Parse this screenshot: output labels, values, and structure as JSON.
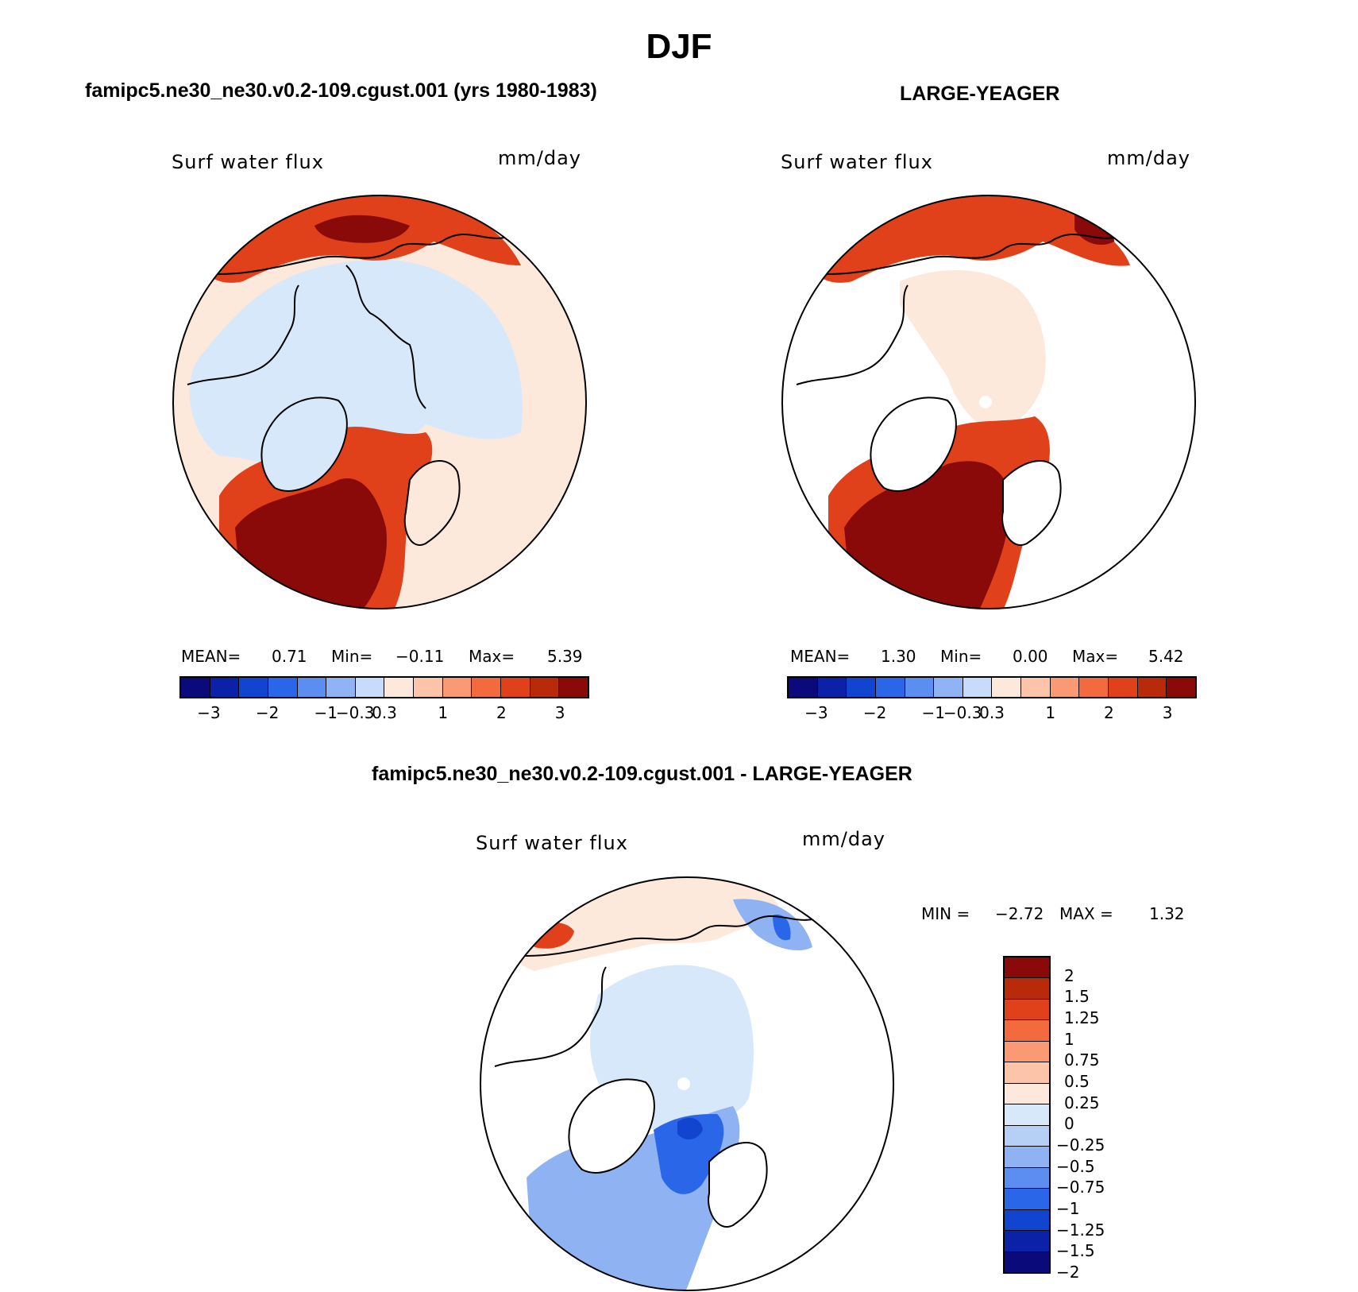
{
  "figure": {
    "title": "DJF"
  },
  "panels": [
    {
      "title": "famipc5.ne30_ne30.v0.2-109.cgust.001 (yrs 1980-1983)",
      "variable": "Surf water flux",
      "units": "mm/day",
      "stats": {
        "mean_label": "MEAN=",
        "mean": "0.71",
        "min_label": "Min=",
        "min": "−0.11",
        "max_label": "Max=",
        "max": "5.39"
      }
    },
    {
      "title": "LARGE-YEAGER",
      "variable": "Surf water flux",
      "units": "mm/day",
      "stats": {
        "mean_label": "MEAN=",
        "mean": "1.30",
        "min_label": "Min=",
        "min": "0.00",
        "max_label": "Max=",
        "max": "5.42"
      }
    },
    {
      "title": "famipc5.ne30_ne30.v0.2-109.cgust.001 - LARGE-YEAGER",
      "variable": "Surf water flux",
      "units": "mm/day",
      "stats": {
        "min_label": "MIN =",
        "min": "−2.72",
        "max_label": "MAX =",
        "max": "1.32"
      }
    }
  ],
  "legend_top": {
    "colors": [
      "#0a0a7a",
      "#0b22a8",
      "#1245cf",
      "#2a66e8",
      "#5b8ef0",
      "#8fb3f5",
      "#c6dcfa",
      "#fde8dc",
      "#fcc4a8",
      "#f99a74",
      "#f26a3e",
      "#e0401a",
      "#b82a0a",
      "#8a0a0a"
    ],
    "tick_labels": [
      "−3",
      "−2",
      "−1",
      "−0.3",
      "0.3",
      "1",
      "2",
      "3"
    ],
    "tick_boundaries": [
      1,
      3,
      5,
      6,
      7,
      9,
      11,
      13
    ]
  },
  "legend_diff": {
    "colors": [
      "#8a0a0a",
      "#b82a0a",
      "#e0401a",
      "#f26a3e",
      "#f99a74",
      "#fcc4a8",
      "#fde8dc",
      "#d8e8fb",
      "#b6cff5",
      "#8fb3f2",
      "#5b8ef0",
      "#2a66e8",
      "#1245cf",
      "#0b22a8",
      "#0a0a7a"
    ],
    "tick_labels": [
      "2",
      "1.5",
      "1.25",
      "1",
      "0.75",
      "0.5",
      "0.25",
      "0",
      "−0.25",
      "−0.5",
      "−0.75",
      "−1",
      "−1.25",
      "−1.5",
      "−2"
    ]
  },
  "map_colors": {
    "background": "#fde8dc",
    "light_red": "#f99a74",
    "red": "#e0401a",
    "dark_red": "#8a0a0a",
    "light_blue": "#d8e8fb",
    "mid_blue": "#8fb3f2",
    "blue": "#2a66e8",
    "land": "#ffffff"
  }
}
